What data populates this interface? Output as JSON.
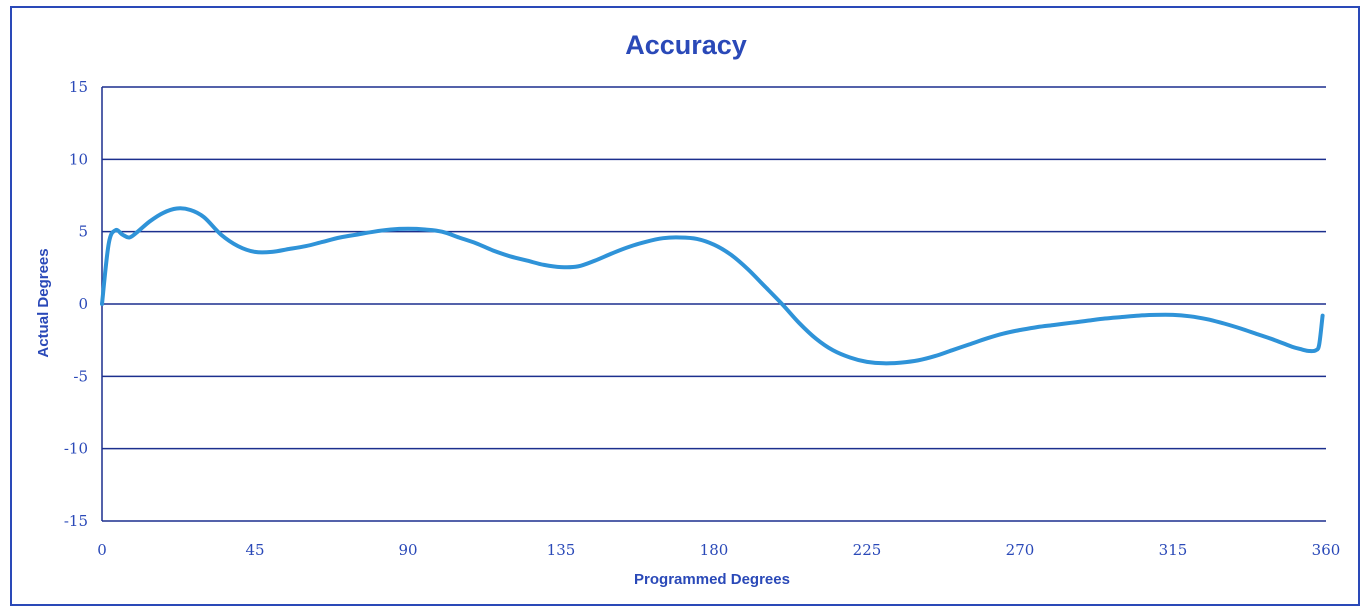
{
  "chart_data": {
    "type": "line",
    "title": "Accuracy",
    "xlabel": "Programmed Degrees",
    "ylabel": "Actual Degrees",
    "xlim": [
      0,
      360
    ],
    "ylim": [
      -15,
      15
    ],
    "x_ticks": [
      0,
      45,
      90,
      135,
      180,
      225,
      270,
      315,
      360
    ],
    "y_ticks": [
      15,
      10,
      5,
      0,
      -5,
      -10,
      -15
    ],
    "grid": "horizontal",
    "legend": "none",
    "series": [
      {
        "color": "#2f93d8",
        "x": [
          0,
          2,
          4,
          6,
          8,
          10,
          14,
          18,
          22,
          26,
          30,
          35,
          40,
          45,
          50,
          55,
          60,
          65,
          70,
          75,
          80,
          85,
          90,
          95,
          100,
          105,
          110,
          115,
          120,
          125,
          130,
          135,
          140,
          145,
          150,
          155,
          160,
          165,
          170,
          175,
          180,
          185,
          190,
          195,
          200,
          205,
          210,
          215,
          220,
          225,
          230,
          235,
          240,
          245,
          250,
          255,
          260,
          265,
          270,
          275,
          280,
          285,
          290,
          295,
          300,
          305,
          310,
          315,
          320,
          325,
          330,
          335,
          340,
          345,
          350,
          353,
          355,
          357,
          358,
          359
        ],
        "values": [
          0,
          4.2,
          5.1,
          4.8,
          4.6,
          4.9,
          5.7,
          6.3,
          6.6,
          6.5,
          6.0,
          4.8,
          4.0,
          3.6,
          3.6,
          3.8,
          4.0,
          4.3,
          4.6,
          4.8,
          5.0,
          5.15,
          5.2,
          5.15,
          5.0,
          4.6,
          4.2,
          3.7,
          3.3,
          3.0,
          2.7,
          2.55,
          2.6,
          3.0,
          3.5,
          3.95,
          4.3,
          4.55,
          4.6,
          4.5,
          4.1,
          3.4,
          2.4,
          1.2,
          0.0,
          -1.3,
          -2.4,
          -3.2,
          -3.7,
          -4.0,
          -4.1,
          -4.05,
          -3.9,
          -3.6,
          -3.2,
          -2.8,
          -2.4,
          -2.05,
          -1.8,
          -1.6,
          -1.45,
          -1.3,
          -1.15,
          -1.0,
          -0.9,
          -0.8,
          -0.75,
          -0.75,
          -0.85,
          -1.05,
          -1.35,
          -1.7,
          -2.1,
          -2.5,
          -2.95,
          -3.15,
          -3.25,
          -3.2,
          -2.8,
          -0.8
        ]
      }
    ]
  },
  "style": {
    "axis_text_color": "#2a49b8",
    "title_color": "#2a49b8",
    "grid_color": "#1c2f8e",
    "frame_color": "#2a49b8",
    "line_color": "#2f93d8"
  }
}
